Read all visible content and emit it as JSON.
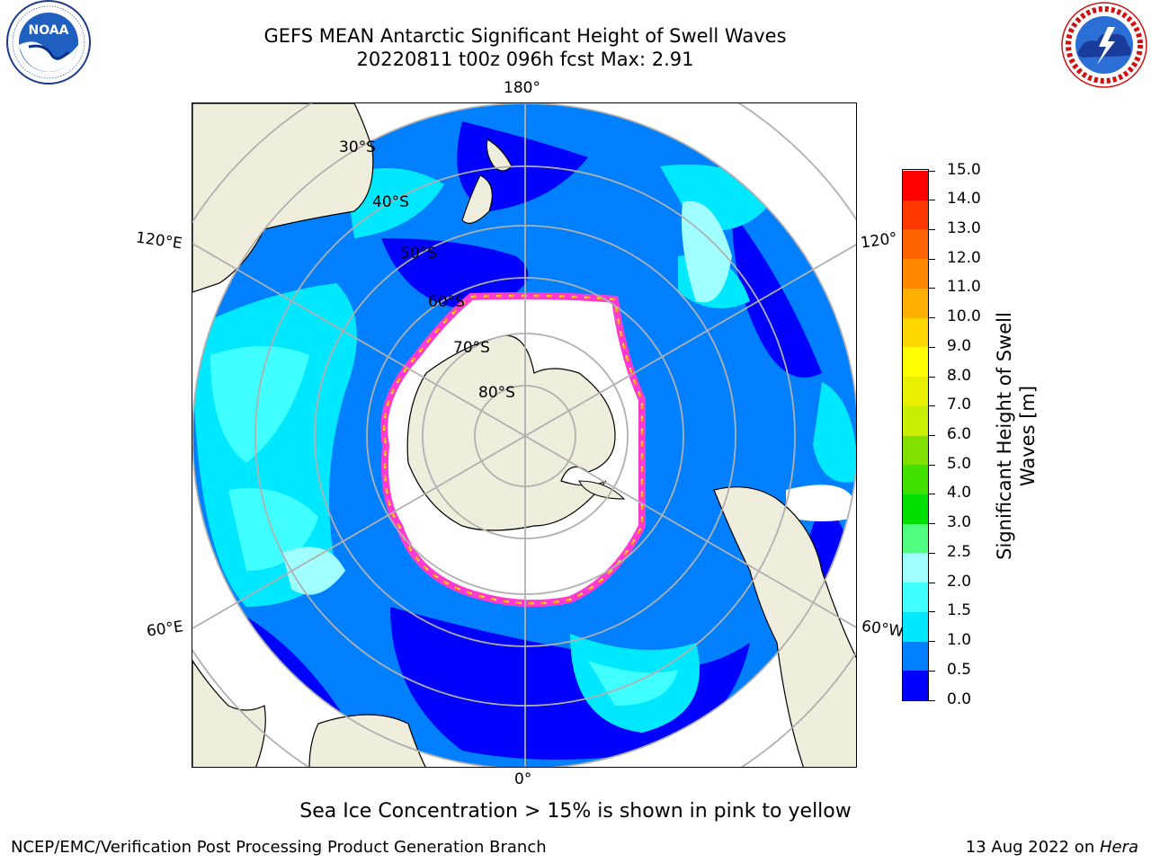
{
  "title_line1": "GEFS MEAN Antarctic Significant Height of Swell Waves",
  "title_line2": "20220811 t00z 096h fcst   Max: 2.91",
  "logos": {
    "left_icon": "noaa-logo",
    "left_text": "NOAA",
    "left_ring_text": "NATIONAL OCEANIC AND ATMOSPHERIC ADMINISTRATION · U.S. DEPARTMENT OF COMMERCE",
    "right_icon": "nws-logo",
    "right_ring_text": "NATIONAL WEATHER SERVICE"
  },
  "map": {
    "projection": "south-polar-stereographic",
    "longitude_labels": {
      "top": "180°",
      "bottom": "0°",
      "upper_left": "120°E",
      "lower_left": "60°E",
      "upper_right": "120°",
      "lower_right": "60°W"
    },
    "latitude_labels": [
      "30°S",
      "40°S",
      "50°S",
      "60°S",
      "70°S",
      "80°S"
    ],
    "colors": {
      "land": "#efeedc",
      "ice_free_white": "#ffffff",
      "sea_ice_edge": [
        "#ff3ad0",
        "#ffb000",
        "#ffff40"
      ],
      "grid": "#b0b0b0"
    }
  },
  "colorbar": {
    "title": "Significant Height of Swell Waves [m]",
    "title_line1": "Significant Height of Swell",
    "title_line2": "Waves [m]",
    "tick_labels": [
      "0.0",
      "0.5",
      "1.0",
      "1.5",
      "2.0",
      "2.5",
      "3.0",
      "4.0",
      "5.0",
      "6.0",
      "7.0",
      "8.0",
      "9.0",
      "10.0",
      "11.0",
      "12.0",
      "13.0",
      "14.0",
      "15.0"
    ],
    "colors": [
      "#0000ff",
      "#0080ff",
      "#00e8ff",
      "#40ffff",
      "#a0ffff",
      "#50ff80",
      "#00e000",
      "#40e000",
      "#80e000",
      "#c8f000",
      "#e8f000",
      "#ffff00",
      "#ffd800",
      "#ffb000",
      "#ff8800",
      "#ff6400",
      "#ff3800",
      "#ff0000"
    ]
  },
  "seaice_note": "Sea Ice Concentration > 15% is shown in pink to yellow",
  "footer_left": "NCEP/EMC/Verification Post Processing Product Generation Branch",
  "footer_right_prefix": "13 Aug 2022 on ",
  "footer_right_host": "Hera"
}
